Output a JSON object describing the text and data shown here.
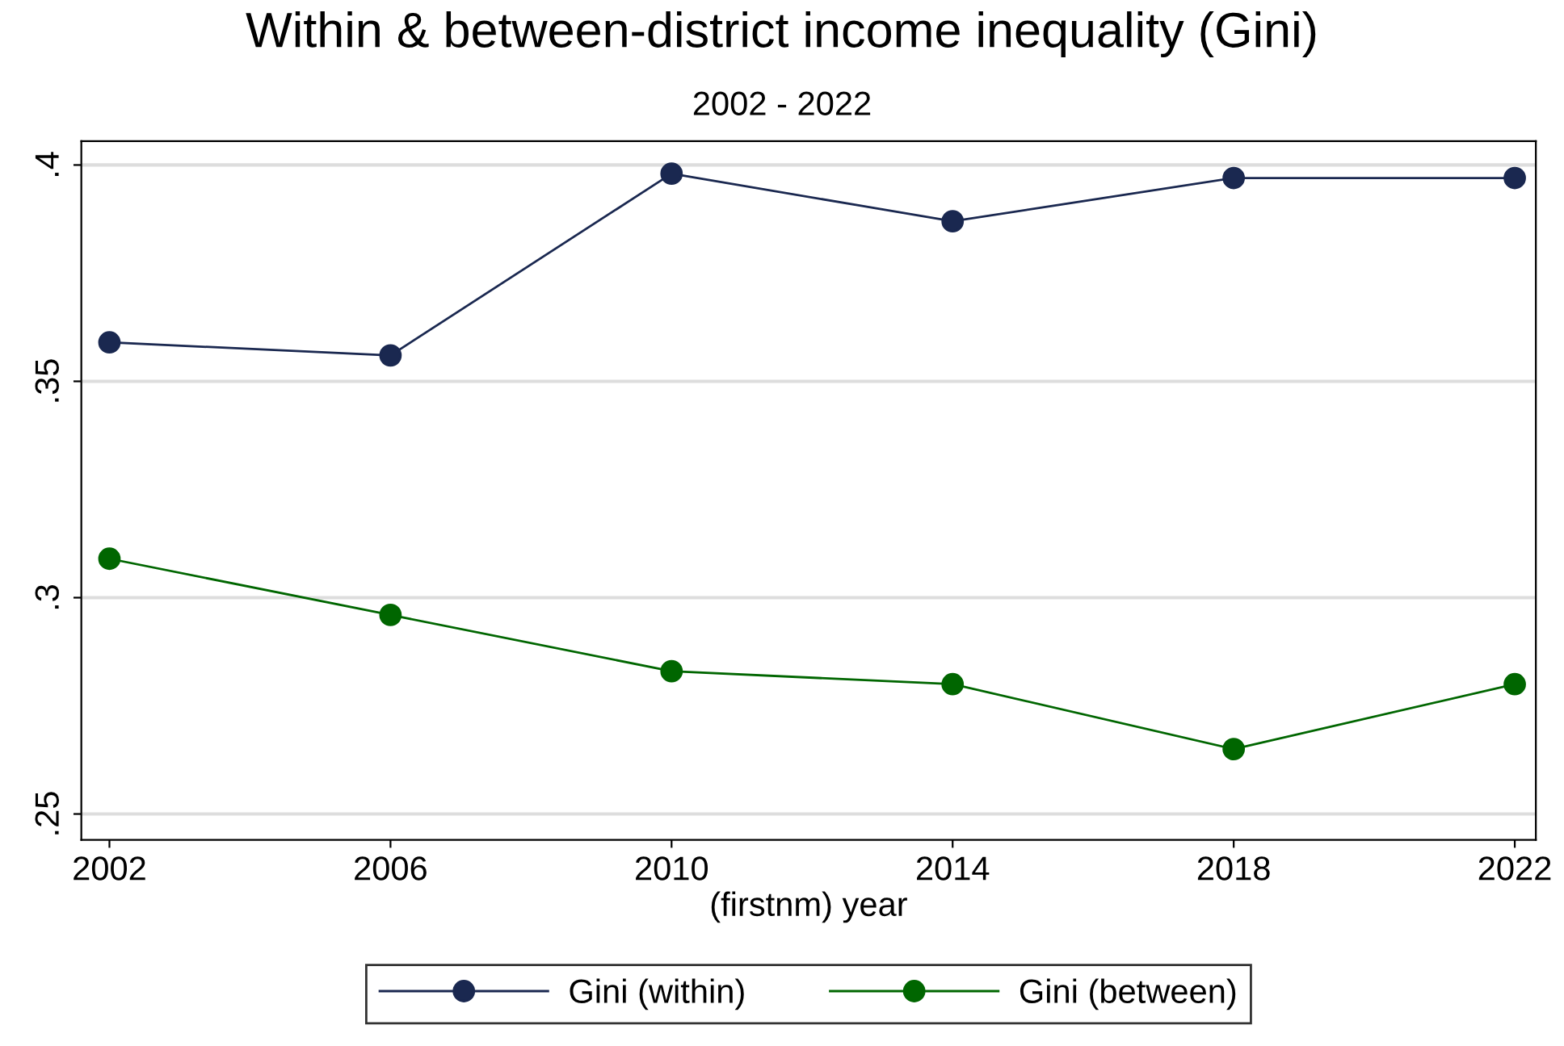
{
  "chart_data": {
    "type": "line",
    "title": "Within & between-district income inequality (Gini)",
    "subtitle": "2002 - 2022",
    "xlabel": "(firstnm) year",
    "x": [
      2002,
      2006,
      2010,
      2014,
      2018,
      2022
    ],
    "series": [
      {
        "name": "Gini (within)",
        "color": "#1a2850",
        "values": [
          0.359,
          0.356,
          0.398,
          0.387,
          0.397,
          0.397
        ]
      },
      {
        "name": "Gini (between)",
        "color": "#006600",
        "values": [
          0.309,
          0.296,
          0.283,
          0.28,
          0.265,
          0.28
        ]
      }
    ],
    "xlim": [
      2001.6,
      2022.3
    ],
    "xticks": [
      2002,
      2006,
      2010,
      2014,
      2018,
      2022
    ],
    "ylim": [
      0.244,
      0.4055
    ],
    "yticks": [
      {
        "value": 0.25,
        "label": ".25"
      },
      {
        "value": 0.3,
        "label": ".3"
      },
      {
        "value": 0.35,
        "label": ".35"
      },
      {
        "value": 0.4,
        "label": ".4"
      }
    ],
    "grid": "y",
    "legend": "bottom",
    "marker": "circle",
    "line_style": "solid"
  }
}
